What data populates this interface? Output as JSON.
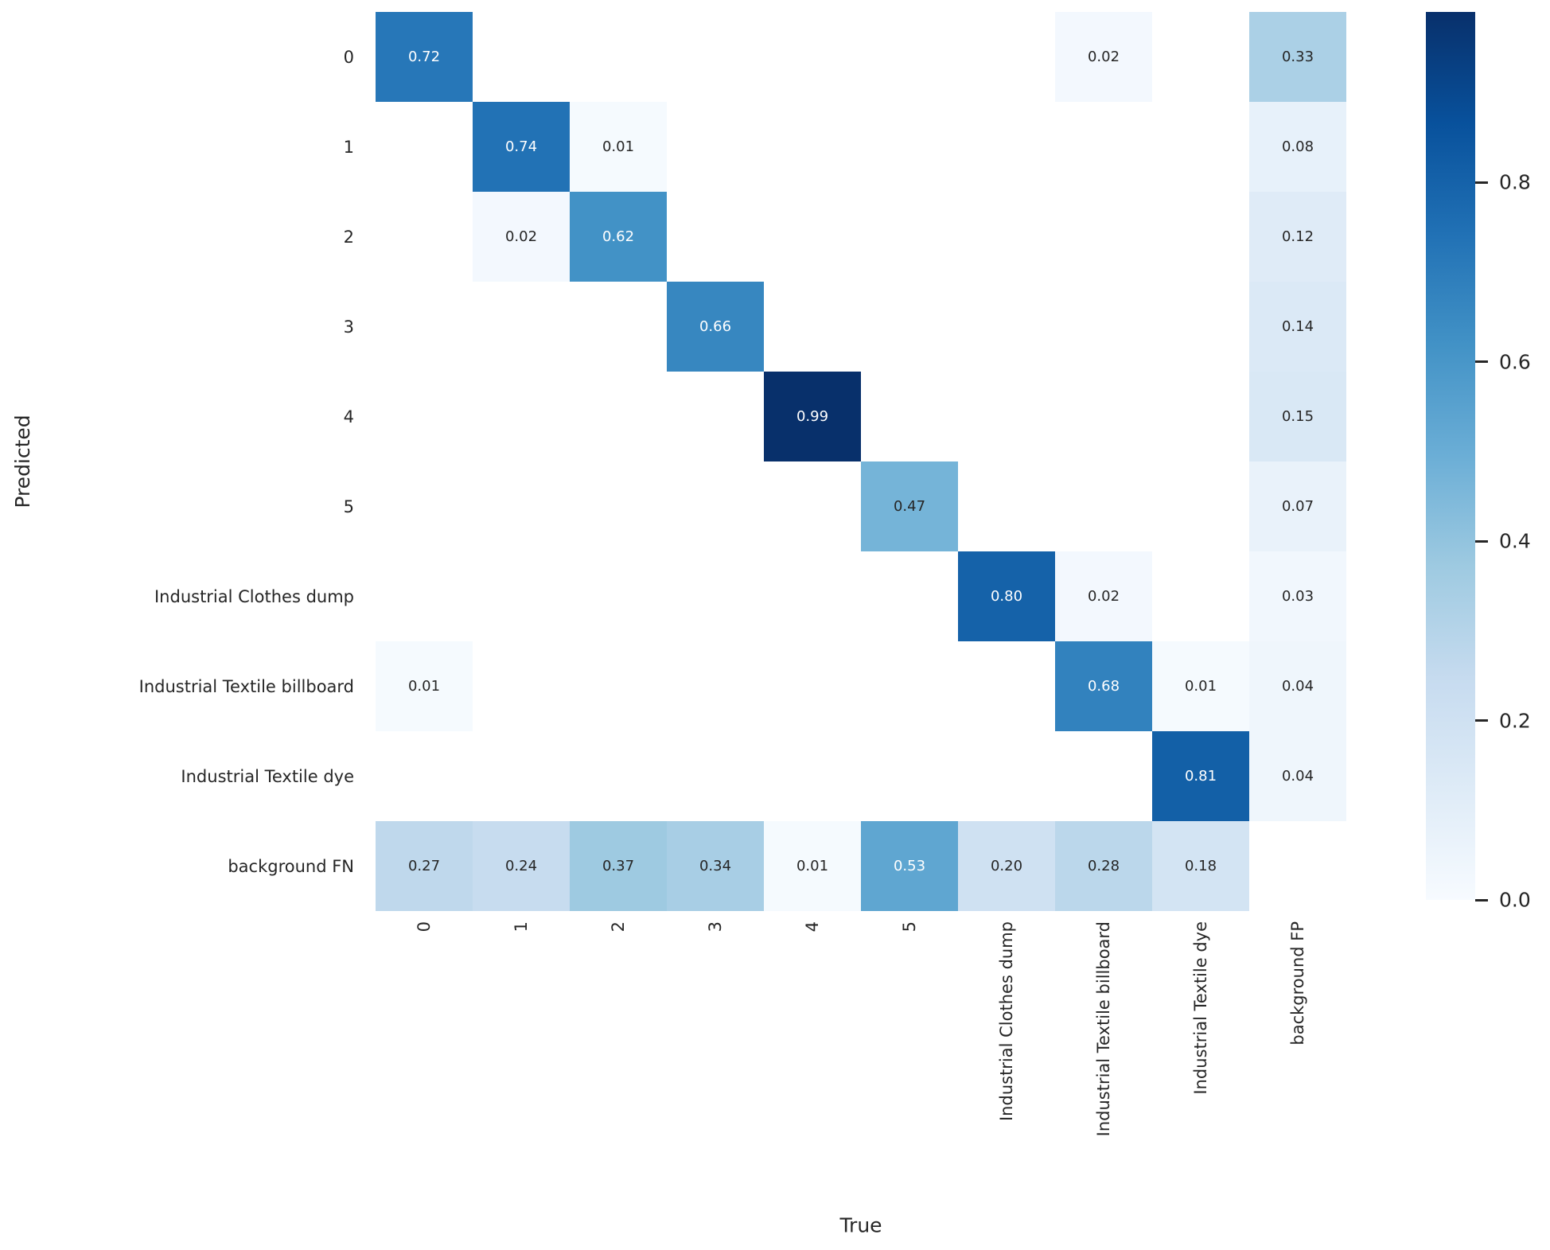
{
  "chart_data": {
    "type": "heatmap",
    "title": "",
    "xlabel": "True",
    "ylabel": "Predicted",
    "x_categories": [
      "0",
      "1",
      "2",
      "3",
      "4",
      "5",
      "Industrial Clothes dump",
      "Industrial Textile billboard",
      "Industrial Textile dye",
      "background FP"
    ],
    "y_categories": [
      "0",
      "1",
      "2",
      "3",
      "4",
      "5",
      "Industrial Clothes dump",
      "Industrial Textile billboard",
      "Industrial Textile dye",
      "background FN"
    ],
    "values": [
      [
        0.72,
        null,
        null,
        null,
        null,
        null,
        null,
        0.02,
        null,
        0.33
      ],
      [
        null,
        0.74,
        0.01,
        null,
        null,
        null,
        null,
        null,
        null,
        0.08
      ],
      [
        null,
        0.02,
        0.62,
        null,
        null,
        null,
        null,
        null,
        null,
        0.12
      ],
      [
        null,
        null,
        null,
        0.66,
        null,
        null,
        null,
        null,
        null,
        0.14
      ],
      [
        null,
        null,
        null,
        null,
        0.99,
        null,
        null,
        null,
        null,
        0.15
      ],
      [
        null,
        null,
        null,
        null,
        null,
        0.47,
        null,
        null,
        null,
        0.07
      ],
      [
        null,
        null,
        null,
        null,
        null,
        null,
        0.8,
        0.02,
        null,
        0.03
      ],
      [
        0.01,
        null,
        null,
        null,
        null,
        null,
        null,
        0.68,
        0.01,
        0.04
      ],
      [
        null,
        null,
        null,
        null,
        null,
        null,
        null,
        null,
        0.81,
        0.04
      ],
      [
        0.27,
        0.24,
        0.37,
        0.34,
        0.01,
        0.53,
        0.2,
        0.28,
        0.18,
        null
      ]
    ],
    "vmin": 0.0,
    "vmax": 0.99,
    "annotation_format": ".2f",
    "colormap": "Blues",
    "colormap_stops": [
      "#f7fbff",
      "#deebf7",
      "#c6dbef",
      "#9ecae1",
      "#6baed6",
      "#4292c6",
      "#2171b5",
      "#08519c",
      "#08306b"
    ],
    "colorbar": {
      "position": "right",
      "ticks": [
        0.0,
        0.2,
        0.4,
        0.6,
        0.8
      ],
      "tick_labels": [
        "0.0",
        "0.2",
        "0.4",
        "0.6",
        "0.8"
      ]
    },
    "grid": false,
    "legend_position": "none",
    "annotation_colors": {
      "dark": "#262626",
      "light": "#ffffff"
    }
  }
}
